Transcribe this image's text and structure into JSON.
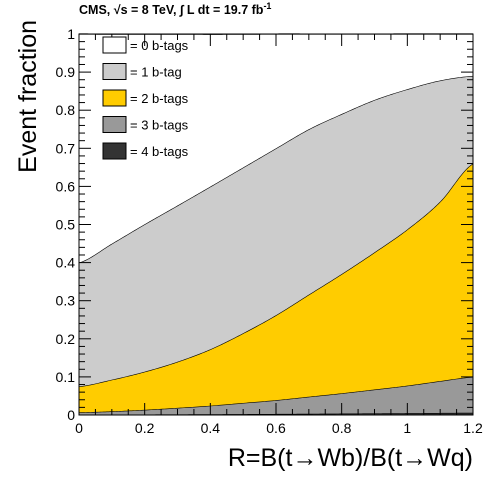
{
  "header": {
    "text": "CMS,  √s = 8 TeV, ∫ L dt = 19.7 fb",
    "superscript": "-1"
  },
  "chart_data": {
    "type": "area",
    "stacked": true,
    "xlabel": "R=B(t→Wb)/B(t→Wq)",
    "ylabel": "Event fraction",
    "xlim": [
      0,
      1.2
    ],
    "ylim": [
      0,
      1
    ],
    "x_ticks": [
      "0",
      "0.2",
      "0.4",
      "0.6",
      "0.8",
      "1",
      "1.2"
    ],
    "y_ticks": [
      "0",
      "0.1",
      "0.2",
      "0.3",
      "0.4",
      "0.5",
      "0.6",
      "0.7",
      "0.8",
      "0.9",
      "1"
    ],
    "legend_position": "top-left",
    "x": [
      0,
      0.1,
      0.2,
      0.3,
      0.4,
      0.5,
      0.6,
      0.7,
      0.8,
      0.9,
      1.0,
      1.1,
      1.2
    ],
    "series": [
      {
        "name": "= 4 b-tags",
        "color": "#333333",
        "values": [
          0.001,
          0.0012,
          0.0014,
          0.0017,
          0.002,
          0.0024,
          0.0028,
          0.0033,
          0.0038,
          0.0043,
          0.0048,
          0.0054,
          0.006
        ]
      },
      {
        "name": "= 3 b-tags",
        "color": "#999999",
        "values": [
          0.006,
          0.0084,
          0.0122,
          0.017,
          0.0224,
          0.0292,
          0.0361,
          0.0446,
          0.0531,
          0.0625,
          0.0722,
          0.0836,
          0.094
        ]
      },
      {
        "name": "= 2 b-tags",
        "color": "#ffcc00",
        "values": [
          0.068,
          0.083,
          0.1,
          0.121,
          0.148,
          0.183,
          0.223,
          0.268,
          0.313,
          0.36,
          0.41,
          0.471,
          0.56
        ]
      },
      {
        "name": "= 1 b-tag",
        "color": "#cccccc",
        "values": [
          0.325,
          0.357,
          0.387,
          0.41,
          0.427,
          0.435,
          0.438,
          0.434,
          0.42,
          0.4,
          0.368,
          0.318,
          0.23
        ]
      },
      {
        "name": "= 0 b-tags",
        "color": "#ffffff",
        "values": [
          0.6,
          0.55,
          0.499,
          0.45,
          0.4,
          0.35,
          0.3,
          0.25,
          0.21,
          0.173,
          0.145,
          0.122,
          0.11
        ]
      }
    ],
    "legend_order": [
      "= 0 b-tags",
      "= 1 b-tag",
      "= 2 b-tags",
      "= 3 b-tags",
      "= 4 b-tags"
    ]
  }
}
